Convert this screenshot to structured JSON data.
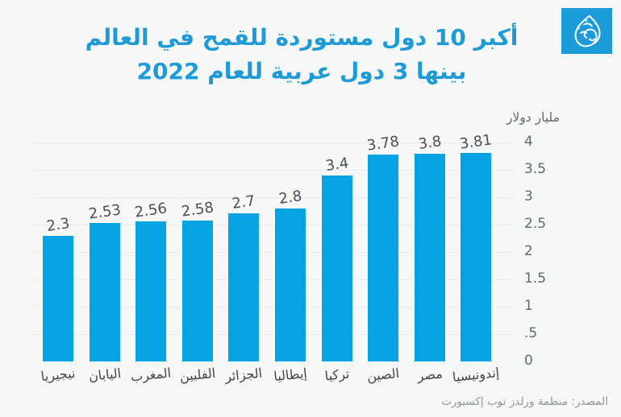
{
  "title": {
    "line1": "أكبر 10 دول مستوردة للقمح في العالم",
    "line2": "بينها 3 دول عربية للعام 2022"
  },
  "logo": {
    "icon": "al-jazeera-logo",
    "bg_color": "#1b9cd9",
    "fg_color": "#ffffff"
  },
  "source_text": "المصدر: منظمة ورلدز توب إكسبورت",
  "colors": {
    "background": "#f6f7f7",
    "bar": "#05a2e4",
    "title": "#1e9bd7",
    "axis_text": "#5f6a70",
    "value_text": "#4a5055",
    "category_text": "#3f464b",
    "gridline": "#e8ecee",
    "source_text": "#8f969a"
  },
  "chart_data": {
    "type": "bar",
    "title": "أكبر 10 دول مستوردة للقمح في العالم بينها 3 دول عربية للعام 2022",
    "ylabel": "مليار دولار",
    "xlabel": "",
    "direction": "rtl-ascending (highest value on the right)",
    "categories_left_to_right": [
      "نيجيريا",
      "اليابان",
      "المغرب",
      "الفلبين",
      "الجزائر",
      "إيطاليا",
      "تركيا",
      "الصين",
      "مصر",
      "إندونيسيا"
    ],
    "values_left_to_right": [
      2.3,
      2.53,
      2.56,
      2.58,
      2.7,
      2.8,
      3.4,
      3.78,
      3.8,
      3.81
    ],
    "value_labels": [
      "2.3",
      "2.53",
      "2.56",
      "2.58",
      "2.7",
      "2.8",
      "3.4",
      "3.78",
      "3.8",
      "3.81"
    ],
    "ranking_high_to_low": [
      "إندونيسيا",
      "مصر",
      "الصين",
      "تركيا",
      "إيطاليا",
      "الجزائر",
      "الفلبين",
      "المغرب",
      "اليابان",
      "نيجيريا"
    ],
    "ylim": [
      0,
      4
    ],
    "yticks": [
      0,
      0.5,
      1,
      1.5,
      2,
      2.5,
      3,
      3.5,
      4
    ],
    "ytick_labels": [
      "0",
      ".5",
      "1",
      "1.5",
      "2",
      "2.5",
      "3",
      "3.5",
      "4"
    ],
    "grid": true,
    "y_axis_side": "right",
    "legend": "none"
  }
}
